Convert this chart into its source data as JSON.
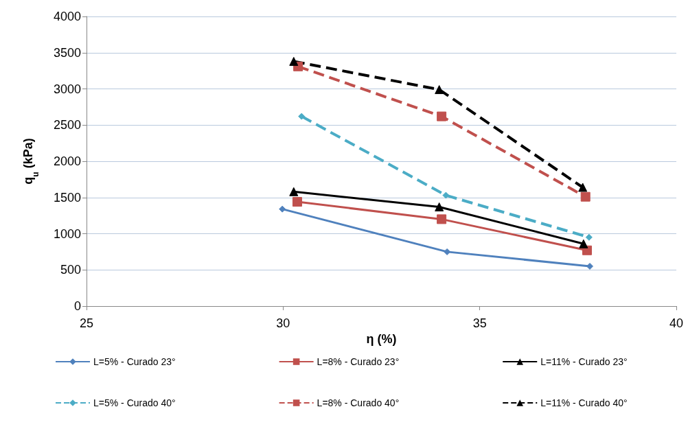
{
  "chart_data": {
    "type": "line",
    "xlabel": "η (%)",
    "ylabel": "q$_{u}$ (kPa)",
    "xlim": [
      25,
      40
    ],
    "xticks": [
      25,
      30,
      35,
      40
    ],
    "ylim": [
      0,
      4000
    ],
    "yticks": [
      0,
      500,
      1000,
      1500,
      2000,
      2500,
      3000,
      3500,
      4000
    ],
    "grid": "y",
    "legend": "bottom",
    "series": [
      {
        "name": "L=5% - Curado 23°",
        "color": "#4f81bd",
        "marker": "diamond",
        "line_style": "solid",
        "x": [
          29.98,
          34.17,
          37.8
        ],
        "values": [
          1340,
          750,
          550
        ]
      },
      {
        "name": "L=8% - Curado 23°",
        "color": "#c0504d",
        "marker": "square",
        "line_style": "solid",
        "x": [
          30.36,
          34.03,
          37.73
        ],
        "values": [
          1440,
          1200,
          770
        ]
      },
      {
        "name": "L=11% - Curado 23°",
        "color": "#000000",
        "marker": "triangle",
        "line_style": "solid",
        "x": [
          30.27,
          33.97,
          37.64
        ],
        "values": [
          1580,
          1370,
          860
        ]
      },
      {
        "name": "L=5% - Curado 40°",
        "color": "#4bacc6",
        "marker": "diamond",
        "line_style": "dashed",
        "x": [
          30.47,
          34.14,
          37.78
        ],
        "values": [
          2620,
          1530,
          950
        ]
      },
      {
        "name": "L=8% - Curado 40°",
        "color": "#c0504d",
        "marker": "square",
        "line_style": "dashed",
        "x": [
          30.38,
          34.03,
          37.69
        ],
        "values": [
          3310,
          2620,
          1510
        ]
      },
      {
        "name": "L=11% - Curado 40°",
        "color": "#000000",
        "marker": "triangle",
        "line_style": "dashed",
        "x": [
          30.27,
          33.97,
          37.62
        ],
        "values": [
          3380,
          2990,
          1640
        ]
      }
    ]
  }
}
